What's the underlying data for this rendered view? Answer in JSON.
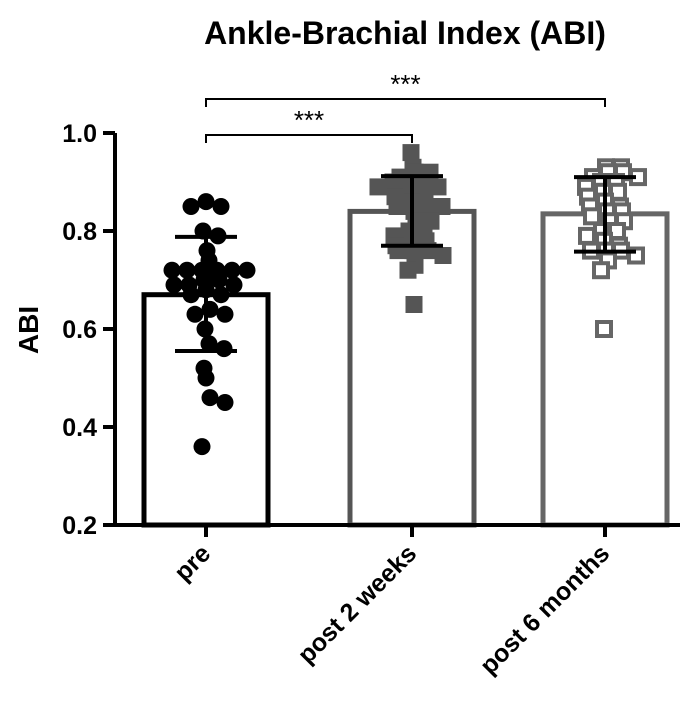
{
  "chart_data": {
    "type": "bar",
    "title": "Ankle-Brachial Index (ABI)",
    "ylabel": "ABI",
    "xlabel": "",
    "ylim": [
      0.2,
      1.0
    ],
    "yticks": [
      "0.2",
      "0.4",
      "0.6",
      "0.8",
      "1.0"
    ],
    "categories": [
      "pre",
      "post 2 weeks",
      "post 6 months"
    ],
    "means": [
      0.67,
      0.84,
      0.835
    ],
    "sd_lower": [
      0.555,
      0.77,
      0.758
    ],
    "sd_upper": [
      0.788,
      0.912,
      0.91
    ],
    "colors": [
      "#000000",
      "#555555",
      "#666666"
    ],
    "markers": [
      "filled-circle",
      "filled-square",
      "open-square"
    ],
    "points": [
      [
        0.86,
        0.85,
        0.85,
        0.8,
        0.79,
        0.76,
        0.74,
        0.72,
        0.72,
        0.72,
        0.72,
        0.72,
        0.72,
        0.7,
        0.7,
        0.69,
        0.69,
        0.69,
        0.68,
        0.67,
        0.67,
        0.64,
        0.63,
        0.63,
        0.6,
        0.57,
        0.56,
        0.52,
        0.5,
        0.46,
        0.45,
        0.36
      ],
      [
        0.96,
        0.93,
        0.92,
        0.92,
        0.91,
        0.9,
        0.9,
        0.9,
        0.89,
        0.89,
        0.88,
        0.88,
        0.87,
        0.86,
        0.85,
        0.85,
        0.85,
        0.84,
        0.83,
        0.82,
        0.82,
        0.8,
        0.8,
        0.79,
        0.78,
        0.78,
        0.77,
        0.76,
        0.76,
        0.76,
        0.75,
        0.73,
        0.72,
        0.65
      ],
      [
        0.93,
        0.93,
        0.92,
        0.92,
        0.91,
        0.91,
        0.9,
        0.9,
        0.89,
        0.88,
        0.88,
        0.87,
        0.86,
        0.85,
        0.85,
        0.84,
        0.84,
        0.83,
        0.82,
        0.82,
        0.8,
        0.8,
        0.79,
        0.78,
        0.77,
        0.76,
        0.76,
        0.76,
        0.75,
        0.74,
        0.72,
        0.6
      ]
    ],
    "significance": [
      {
        "from": 0,
        "to": 1,
        "label": "***"
      },
      {
        "from": 0,
        "to": 2,
        "label": "***"
      }
    ]
  }
}
